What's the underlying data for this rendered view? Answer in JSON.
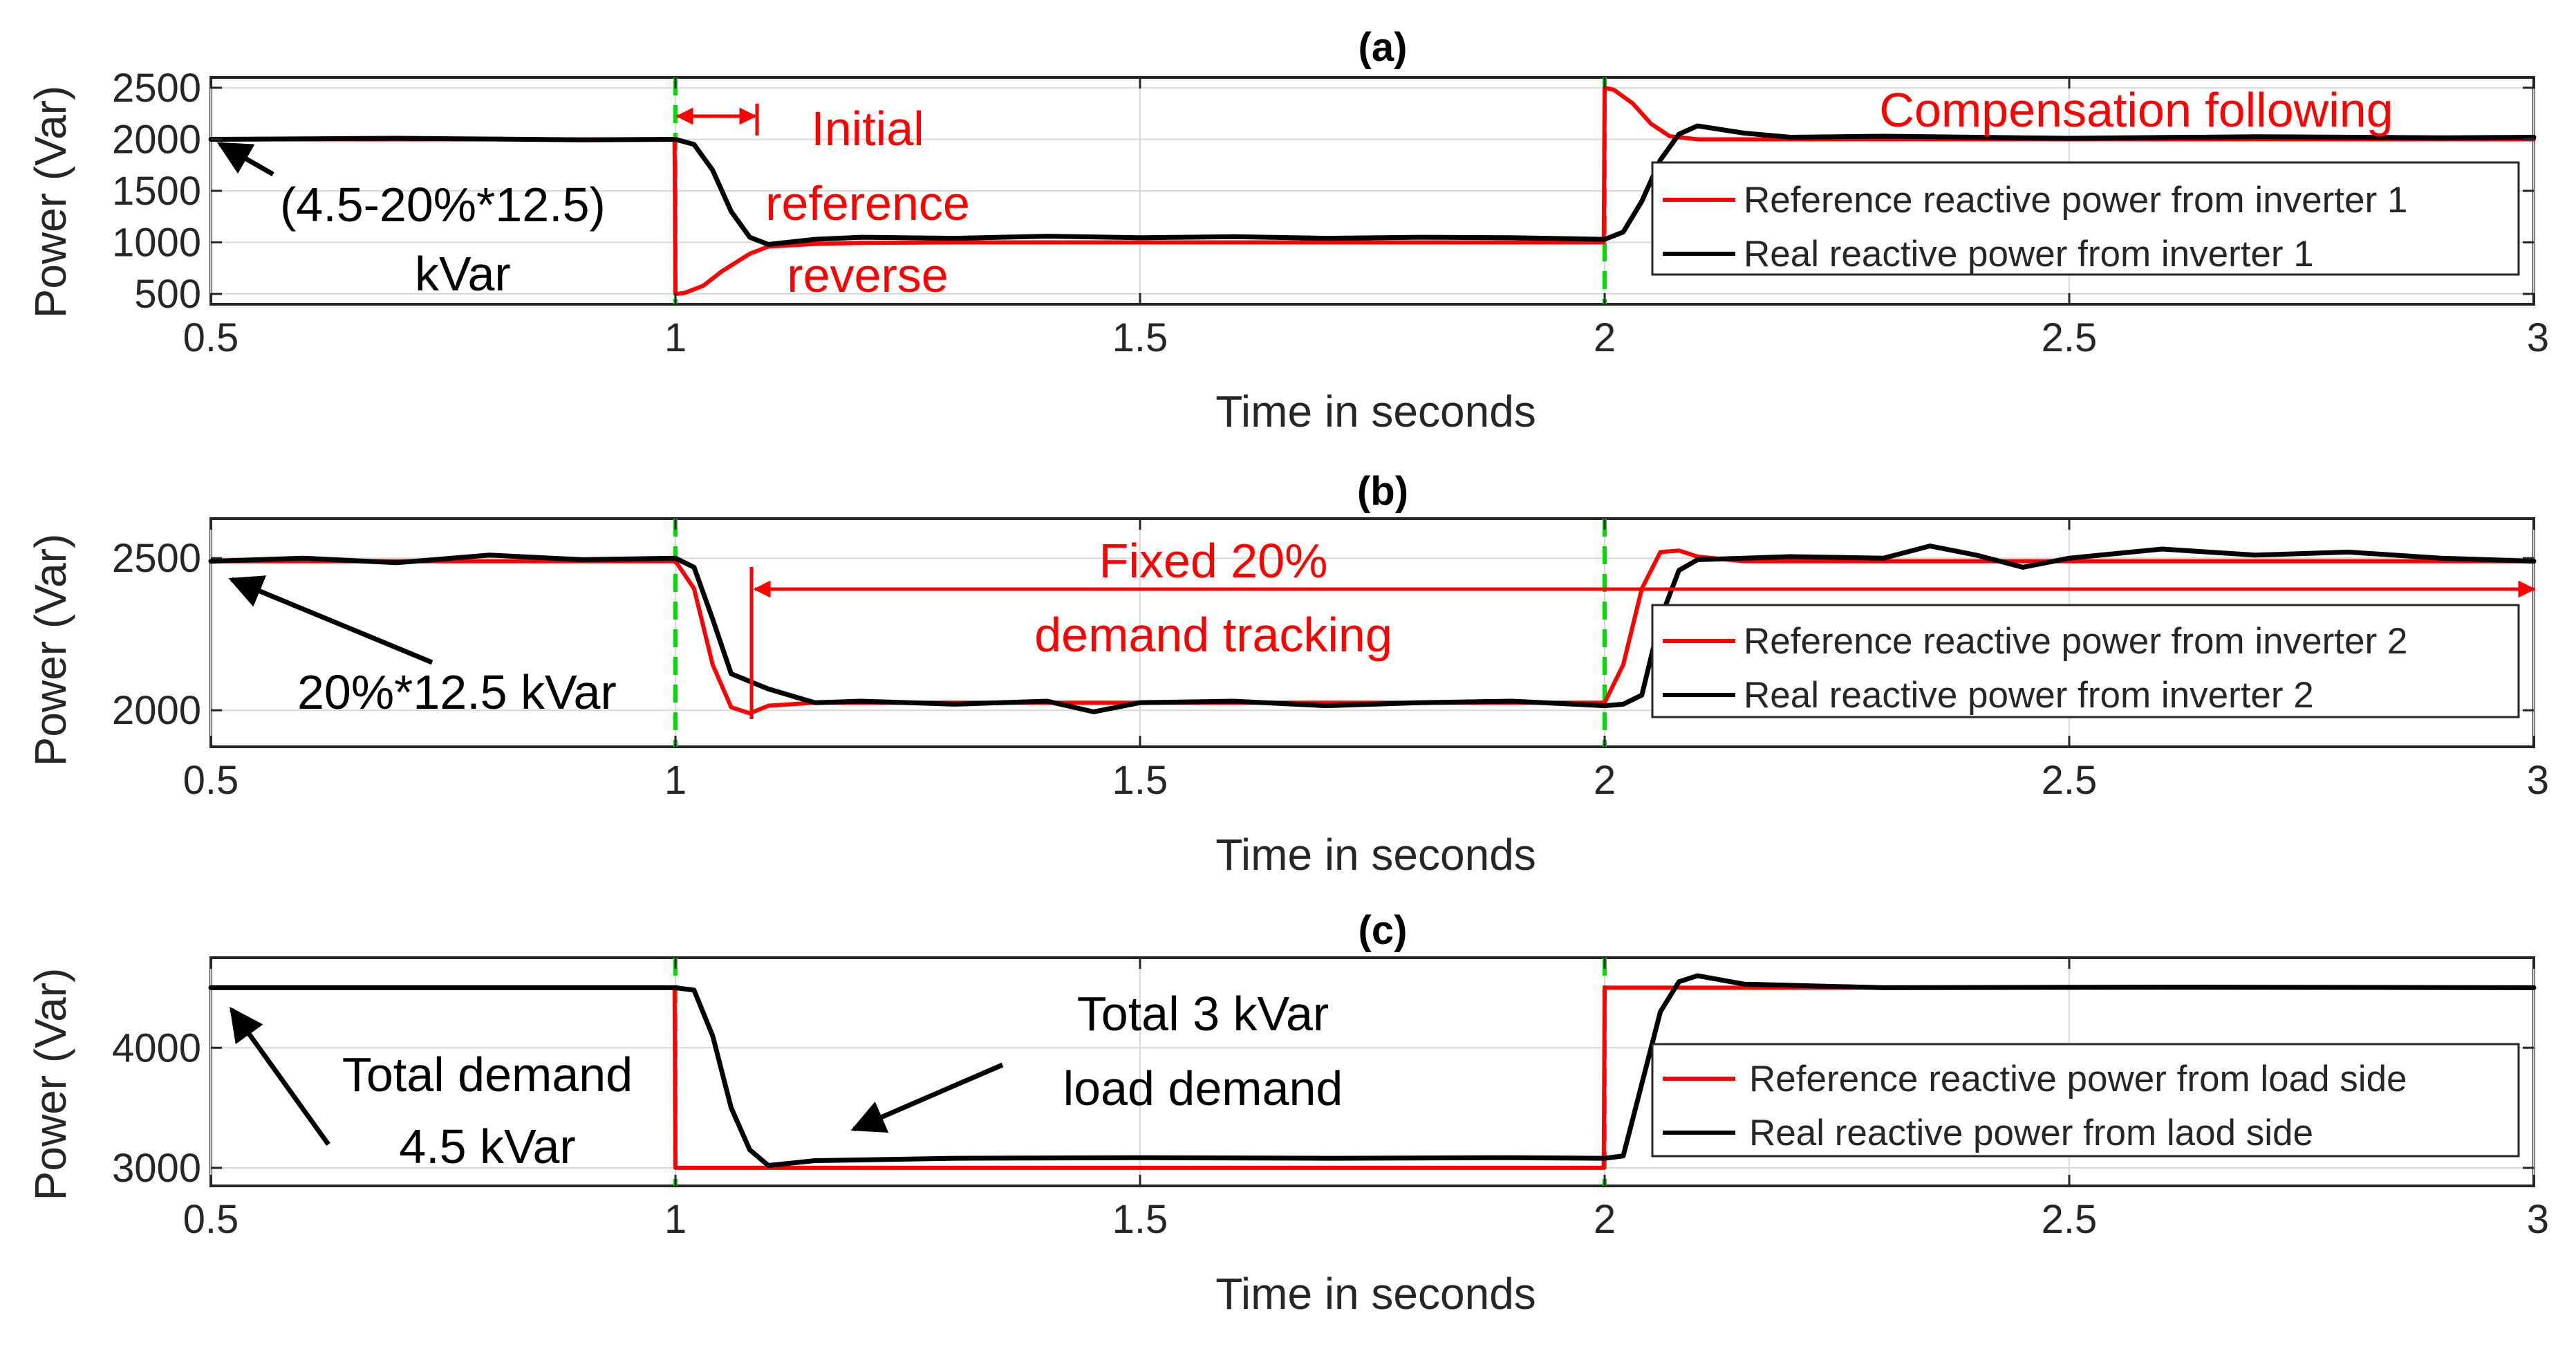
{
  "chart_data": [
    {
      "type": "line",
      "title": "(a)",
      "xlabel": "Time in seconds",
      "ylabel": "Power (Var)",
      "xlim": [
        0.5,
        3
      ],
      "ylim": [
        400,
        2600
      ],
      "xticks": [
        0.5,
        1,
        1.5,
        2,
        2.5,
        3
      ],
      "xtick_labels": [
        "0.5",
        "1",
        "1.5",
        "2",
        "2.5",
        "3"
      ],
      "yticks": [
        500,
        1000,
        1500,
        2000,
        2500
      ],
      "ytick_labels": [
        "500",
        "1000",
        "1500",
        "2000",
        "2500"
      ],
      "grid": true,
      "legend_position": "right",
      "vlines": [
        1,
        2
      ],
      "vline_color": "#00dd00",
      "series": [
        {
          "name": "Reference reactive power from inverter 1",
          "color": "#ff0000",
          "x": [
            0.5,
            0.999,
            1.0,
            1.01,
            1.03,
            1.05,
            1.08,
            1.1,
            1.15,
            1.2,
            1.3,
            1.5,
            1.7,
            1.9,
            1.999,
            2.0,
            2.01,
            2.03,
            2.05,
            2.07,
            2.1,
            2.2,
            2.4,
            2.6,
            2.8,
            3.0
          ],
          "values": [
            2000,
            2000,
            500,
            510,
            580,
            720,
            890,
            960,
            985,
            995,
            1000,
            1000,
            1000,
            1000,
            1000,
            2500,
            2480,
            2350,
            2150,
            2030,
            2000,
            2000,
            2000,
            2000,
            2000,
            2000
          ]
        },
        {
          "name": "Real reactive power from inverter 1",
          "color": "#000000",
          "x": [
            0.5,
            0.7,
            0.9,
            1.0,
            1.02,
            1.04,
            1.06,
            1.08,
            1.1,
            1.15,
            1.2,
            1.3,
            1.4,
            1.5,
            1.6,
            1.7,
            1.8,
            1.9,
            2.0,
            2.02,
            2.04,
            2.06,
            2.08,
            2.1,
            2.15,
            2.2,
            2.3,
            2.5,
            2.7,
            2.9,
            3.0
          ],
          "values": [
            2000,
            2010,
            1995,
            2000,
            1950,
            1700,
            1300,
            1050,
            980,
            1030,
            1050,
            1040,
            1060,
            1045,
            1055,
            1040,
            1050,
            1045,
            1030,
            1100,
            1400,
            1800,
            2050,
            2130,
            2060,
            2020,
            2030,
            2010,
            2025,
            2015,
            2020
          ]
        }
      ],
      "annotations": [
        {
          "text": "(4.5-20%*12.5)",
          "color": "#000000"
        },
        {
          "text": "kVar",
          "color": "#000000"
        },
        {
          "text": "Initial",
          "color": "#ff0000"
        },
        {
          "text": "reference",
          "color": "#ff0000"
        },
        {
          "text": "reverse",
          "color": "#ff0000"
        },
        {
          "text": "Compensation following",
          "color": "#ff0000"
        }
      ]
    },
    {
      "type": "line",
      "title": "(b)",
      "xlabel": "Time in seconds",
      "ylabel": "Power (Var)",
      "xlim": [
        0.5,
        3
      ],
      "ylim": [
        1880,
        2630
      ],
      "xticks": [
        0.5,
        1,
        1.5,
        2,
        2.5,
        3
      ],
      "xtick_labels": [
        "0.5",
        "1",
        "1.5",
        "2",
        "2.5",
        "3"
      ],
      "yticks": [
        2000,
        2500
      ],
      "ytick_labels": [
        "2000",
        "2500"
      ],
      "grid": true,
      "legend_position": "right",
      "vlines": [
        1,
        2
      ],
      "vline_color": "#00dd00",
      "series": [
        {
          "name": "Reference reactive power from inverter 2",
          "color": "#ff0000",
          "x": [
            0.5,
            1.0,
            1.02,
            1.04,
            1.06,
            1.08,
            1.1,
            1.15,
            1.3,
            1.5,
            1.7,
            1.9,
            2.0,
            2.02,
            2.04,
            2.06,
            2.08,
            2.1,
            2.15,
            2.3,
            2.5,
            2.7,
            2.9,
            3.0
          ],
          "values": [
            2490,
            2490,
            2400,
            2150,
            2010,
            1990,
            2015,
            2025,
            2025,
            2025,
            2025,
            2025,
            2025,
            2150,
            2400,
            2520,
            2525,
            2505,
            2490,
            2490,
            2490,
            2490,
            2490,
            2490
          ]
        },
        {
          "name": "Real reactive power from inverter 2",
          "color": "#000000",
          "x": [
            0.5,
            0.6,
            0.7,
            0.8,
            0.9,
            1.0,
            1.02,
            1.04,
            1.06,
            1.1,
            1.15,
            1.2,
            1.3,
            1.4,
            1.45,
            1.5,
            1.6,
            1.7,
            1.8,
            1.9,
            2.0,
            2.02,
            2.04,
            2.06,
            2.08,
            2.1,
            2.2,
            2.3,
            2.35,
            2.4,
            2.45,
            2.5,
            2.6,
            2.7,
            2.8,
            2.9,
            3.0
          ],
          "values": [
            2490,
            2500,
            2485,
            2510,
            2495,
            2500,
            2470,
            2300,
            2120,
            2070,
            2025,
            2030,
            2020,
            2030,
            1995,
            2025,
            2030,
            2015,
            2025,
            2030,
            2015,
            2020,
            2050,
            2300,
            2460,
            2495,
            2505,
            2500,
            2540,
            2510,
            2470,
            2500,
            2530,
            2510,
            2520,
            2500,
            2490
          ]
        }
      ],
      "annotations": [
        {
          "text": "20%*12.5 kVar",
          "color": "#000000"
        },
        {
          "text": "Fixed 20%",
          "color": "#ff0000"
        },
        {
          "text": "demand tracking",
          "color": "#ff0000"
        }
      ]
    },
    {
      "type": "line",
      "title": "(c)",
      "xlabel": "Time in seconds",
      "ylabel": "Power (Var)",
      "xlim": [
        0.5,
        3
      ],
      "ylim": [
        2850,
        4750
      ],
      "xticks": [
        0.5,
        1,
        1.5,
        2,
        2.5,
        3
      ],
      "xtick_labels": [
        "0.5",
        "1",
        "1.5",
        "2",
        "2.5",
        "3"
      ],
      "yticks": [
        3000,
        4000
      ],
      "ytick_labels": [
        "3000",
        "4000"
      ],
      "grid": true,
      "legend_position": "right",
      "vlines": [
        1,
        2
      ],
      "vline_color": "#00dd00",
      "series": [
        {
          "name": "Reference reactive power from load side",
          "color": "#ff0000",
          "x": [
            0.5,
            0.999,
            1.0,
            1.999,
            2.0,
            3.0
          ],
          "values": [
            4500,
            4500,
            3000,
            3000,
            4500,
            4500
          ]
        },
        {
          "name": "Real reactive power from laod side",
          "color": "#000000",
          "x": [
            0.5,
            0.8,
            1.0,
            1.02,
            1.04,
            1.06,
            1.08,
            1.1,
            1.15,
            1.3,
            1.5,
            1.7,
            1.9,
            2.0,
            2.02,
            2.04,
            2.06,
            2.08,
            2.1,
            2.15,
            2.3,
            2.6,
            3.0
          ],
          "values": [
            4500,
            4500,
            4500,
            4480,
            4100,
            3500,
            3150,
            3020,
            3060,
            3080,
            3085,
            3080,
            3085,
            3080,
            3100,
            3700,
            4300,
            4550,
            4600,
            4530,
            4500,
            4505,
            4500
          ]
        }
      ],
      "annotations": [
        {
          "text": "Total demand",
          "color": "#000000"
        },
        {
          "text": "4.5 kVar",
          "color": "#000000"
        },
        {
          "text": "Total 3 kVar",
          "color": "#000000"
        },
        {
          "text": "load demand",
          "color": "#000000"
        }
      ]
    }
  ]
}
